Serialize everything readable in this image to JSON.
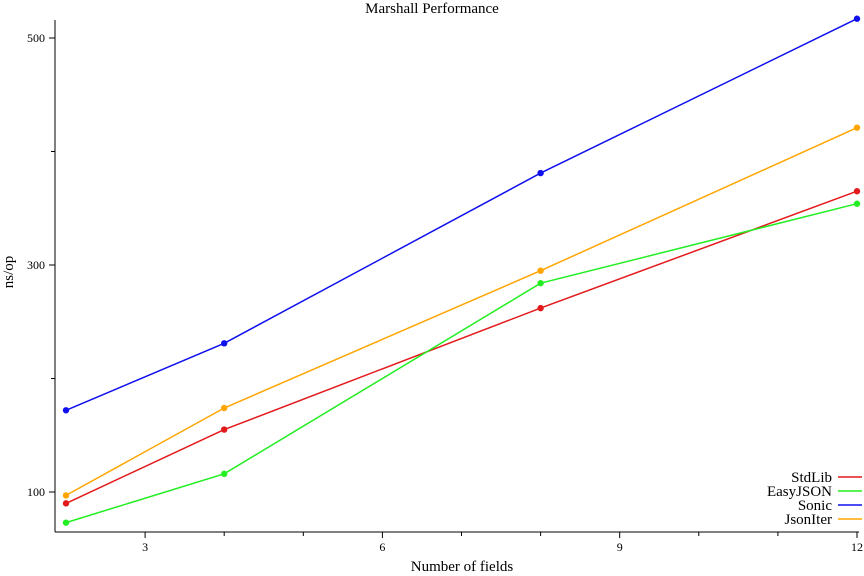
{
  "chart_data": {
    "type": "line",
    "title": "Marshall Performance",
    "xlabel": "Number of fields",
    "ylabel": "ns/op",
    "x": [
      2,
      4,
      8,
      12
    ],
    "xlim": [
      2,
      12
    ],
    "ylim": [
      73,
      520
    ],
    "xticks": [
      3,
      6,
      9,
      12
    ],
    "xminor": [
      4,
      5,
      7,
      8,
      10,
      11
    ],
    "yticks": [
      100,
      300,
      500
    ],
    "yminor": [
      200,
      400
    ],
    "grid": false,
    "legend_position": "bottom-right",
    "series": [
      {
        "name": "StdLib",
        "color": "#e31a1c",
        "values": [
          90,
          155,
          262,
          365
        ]
      },
      {
        "name": "EasyJSON",
        "color": "#22ee22",
        "values": [
          73,
          116,
          284,
          354
        ]
      },
      {
        "name": "Sonic",
        "color": "#1010ee",
        "values": [
          172,
          231,
          381,
          517
        ]
      },
      {
        "name": "JsonIter",
        "color": "#ffa500",
        "values": [
          97,
          174,
          295,
          421
        ]
      }
    ]
  }
}
